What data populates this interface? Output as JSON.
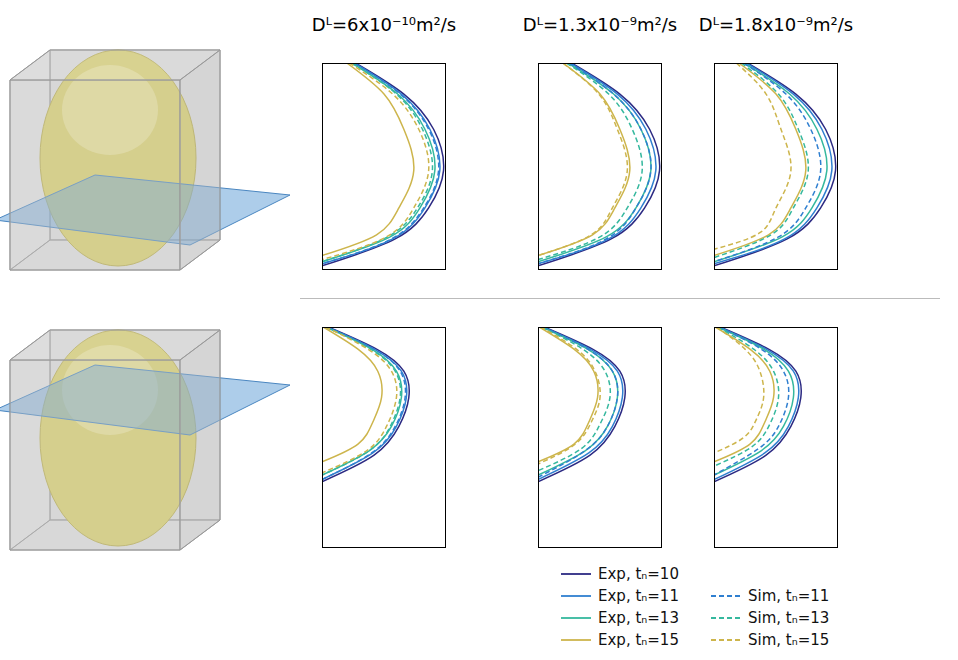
{
  "chart_data": [
    {
      "type": "line",
      "title": "Dᴸ=6x10⁻¹⁰m²/s",
      "xlim": [
        0,
        1
      ],
      "ylim": [
        0,
        1
      ],
      "tick_labels": false,
      "series": [
        {
          "name": "Exp, tₙ=10",
          "color": "#2c2a83",
          "line_style": "solid",
          "x": [
            0.27,
            0.66,
            0.9,
            0.98,
            0.86,
            0.59,
            0
          ],
          "values": [
            1,
            0.85,
            0.68,
            0.48,
            0.3,
            0.15,
            0.02
          ]
        },
        {
          "name": "Exp, tₙ=11",
          "color": "#2f7fd0",
          "line_style": "solid",
          "x": [
            0.26,
            0.64,
            0.87,
            0.95,
            0.83,
            0.57,
            0
          ],
          "values": [
            1,
            0.85,
            0.68,
            0.48,
            0.3,
            0.15,
            0.03
          ]
        },
        {
          "name": "Exp, tₙ=13",
          "color": "#35b89e",
          "line_style": "solid",
          "x": [
            0.24,
            0.61,
            0.83,
            0.91,
            0.79,
            0.55,
            0
          ],
          "values": [
            1,
            0.85,
            0.68,
            0.48,
            0.3,
            0.16,
            0.04
          ]
        },
        {
          "name": "Exp, tₙ=15",
          "color": "#cdb54c",
          "line_style": "solid",
          "x": [
            0.2,
            0.5,
            0.66,
            0.74,
            0.62,
            0.44,
            0
          ],
          "values": [
            1,
            0.85,
            0.68,
            0.48,
            0.3,
            0.17,
            0.07
          ]
        },
        {
          "name": "Sim, tₙ=11",
          "color": "#2f7fd0",
          "line_style": "dashed",
          "x": [
            0.26,
            0.63,
            0.86,
            0.94,
            0.82,
            0.56,
            0
          ],
          "values": [
            1,
            0.85,
            0.68,
            0.48,
            0.3,
            0.15,
            0.03
          ]
        },
        {
          "name": "Sim, tₙ=13",
          "color": "#35b89e",
          "line_style": "dashed",
          "x": [
            0.24,
            0.6,
            0.81,
            0.89,
            0.77,
            0.53,
            0
          ],
          "values": [
            1,
            0.85,
            0.68,
            0.48,
            0.3,
            0.16,
            0.04
          ]
        },
        {
          "name": "Sim, tₙ=15",
          "color": "#cdb54c",
          "line_style": "dashed",
          "x": [
            0.22,
            0.57,
            0.78,
            0.86,
            0.74,
            0.52,
            0
          ],
          "values": [
            1,
            0.85,
            0.68,
            0.48,
            0.3,
            0.16,
            0.05
          ]
        }
      ]
    },
    {
      "type": "line",
      "title": "Dᴸ=1.3x10⁻⁹m²/s",
      "xlim": [
        0,
        1
      ],
      "ylim": [
        0,
        1
      ],
      "tick_labels": false,
      "series": [
        {
          "name": "Exp, tₙ=10",
          "color": "#2c2a83",
          "line_style": "solid",
          "x": [
            0.27,
            0.66,
            0.9,
            0.98,
            0.86,
            0.59,
            0
          ],
          "values": [
            1,
            0.85,
            0.68,
            0.48,
            0.3,
            0.15,
            0.02
          ]
        },
        {
          "name": "Exp, tₙ=11",
          "color": "#2f7fd0",
          "line_style": "solid",
          "x": [
            0.26,
            0.64,
            0.87,
            0.95,
            0.83,
            0.57,
            0
          ],
          "values": [
            1,
            0.85,
            0.68,
            0.48,
            0.3,
            0.15,
            0.03
          ]
        },
        {
          "name": "Exp, tₙ=13",
          "color": "#35b89e",
          "line_style": "solid",
          "x": [
            0.24,
            0.61,
            0.83,
            0.91,
            0.79,
            0.55,
            0
          ],
          "values": [
            1,
            0.85,
            0.68,
            0.48,
            0.3,
            0.16,
            0.04
          ]
        },
        {
          "name": "Exp, tₙ=15",
          "color": "#cdb54c",
          "line_style": "solid",
          "x": [
            0.2,
            0.5,
            0.66,
            0.74,
            0.62,
            0.44,
            0
          ],
          "values": [
            1,
            0.85,
            0.68,
            0.48,
            0.3,
            0.17,
            0.07
          ]
        },
        {
          "name": "Sim, tₙ=11",
          "color": "#2f7fd0",
          "line_style": "dashed",
          "x": [
            0.25,
            0.61,
            0.83,
            0.91,
            0.79,
            0.55,
            0
          ],
          "values": [
            1,
            0.85,
            0.68,
            0.48,
            0.3,
            0.15,
            0.03
          ]
        },
        {
          "name": "Sim, tₙ=13",
          "color": "#35b89e",
          "line_style": "dashed",
          "x": [
            0.23,
            0.57,
            0.76,
            0.84,
            0.72,
            0.5,
            0
          ],
          "values": [
            1,
            0.85,
            0.68,
            0.48,
            0.3,
            0.16,
            0.05
          ]
        },
        {
          "name": "Sim, tₙ=15",
          "color": "#cdb54c",
          "line_style": "dashed",
          "x": [
            0.2,
            0.49,
            0.64,
            0.72,
            0.6,
            0.43,
            0
          ],
          "values": [
            1,
            0.85,
            0.68,
            0.48,
            0.3,
            0.17,
            0.07
          ]
        }
      ]
    },
    {
      "type": "line",
      "title": "Dᴸ=1.8x10⁻⁹m²/s",
      "xlim": [
        0,
        1
      ],
      "ylim": [
        0,
        1
      ],
      "tick_labels": false,
      "series": [
        {
          "name": "Exp, tₙ=10",
          "color": "#2c2a83",
          "line_style": "solid",
          "x": [
            0.27,
            0.66,
            0.9,
            0.98,
            0.86,
            0.59,
            0
          ],
          "values": [
            1,
            0.85,
            0.68,
            0.48,
            0.3,
            0.15,
            0.02
          ]
        },
        {
          "name": "Exp, tₙ=11",
          "color": "#2f7fd0",
          "line_style": "solid",
          "x": [
            0.26,
            0.64,
            0.87,
            0.95,
            0.83,
            0.57,
            0
          ],
          "values": [
            1,
            0.85,
            0.68,
            0.48,
            0.3,
            0.15,
            0.03
          ]
        },
        {
          "name": "Exp, tₙ=13",
          "color": "#35b89e",
          "line_style": "solid",
          "x": [
            0.24,
            0.61,
            0.83,
            0.91,
            0.79,
            0.55,
            0
          ],
          "values": [
            1,
            0.85,
            0.68,
            0.48,
            0.3,
            0.16,
            0.04
          ]
        },
        {
          "name": "Exp, tₙ=15",
          "color": "#cdb54c",
          "line_style": "solid",
          "x": [
            0.2,
            0.5,
            0.66,
            0.74,
            0.62,
            0.44,
            0
          ],
          "values": [
            1,
            0.85,
            0.68,
            0.48,
            0.3,
            0.17,
            0.07
          ]
        },
        {
          "name": "Sim, tₙ=11",
          "color": "#2f7fd0",
          "line_style": "dashed",
          "x": [
            0.24,
            0.58,
            0.78,
            0.86,
            0.74,
            0.52,
            0
          ],
          "values": [
            1,
            0.85,
            0.68,
            0.48,
            0.3,
            0.16,
            0.04
          ]
        },
        {
          "name": "Sim, tₙ=13",
          "color": "#35b89e",
          "line_style": "dashed",
          "x": [
            0.22,
            0.52,
            0.68,
            0.76,
            0.64,
            0.46,
            0
          ],
          "values": [
            1,
            0.85,
            0.68,
            0.48,
            0.3,
            0.17,
            0.06
          ]
        },
        {
          "name": "Sim, tₙ=15",
          "color": "#cdb54c",
          "line_style": "dashed",
          "x": [
            0.18,
            0.42,
            0.54,
            0.62,
            0.5,
            0.37,
            0
          ],
          "values": [
            1,
            0.85,
            0.68,
            0.48,
            0.3,
            0.18,
            0.1
          ]
        }
      ]
    },
    {
      "type": "line",
      "xlim": [
        0,
        1
      ],
      "ylim": [
        0,
        1
      ],
      "tick_labels": false,
      "series": [
        {
          "name": "Exp, tₙ=10",
          "color": "#2c2a83",
          "line_style": "solid",
          "x": [
            0.05,
            0.44,
            0.66,
            0.7,
            0.62,
            0.42,
            0
          ],
          "values": [
            1,
            0.9,
            0.8,
            0.68,
            0.55,
            0.42,
            0.3
          ]
        },
        {
          "name": "Exp, tₙ=11",
          "color": "#2f7fd0",
          "line_style": "solid",
          "x": [
            0.04,
            0.42,
            0.64,
            0.68,
            0.6,
            0.41,
            0
          ],
          "values": [
            1,
            0.9,
            0.8,
            0.68,
            0.55,
            0.43,
            0.31
          ]
        },
        {
          "name": "Exp, tₙ=13",
          "color": "#35b89e",
          "line_style": "solid",
          "x": [
            0.03,
            0.4,
            0.6,
            0.64,
            0.56,
            0.38,
            0
          ],
          "values": [
            1,
            0.9,
            0.8,
            0.68,
            0.55,
            0.44,
            0.33
          ]
        },
        {
          "name": "Exp, tₙ=15",
          "color": "#cdb54c",
          "line_style": "solid",
          "x": [
            0.01,
            0.29,
            0.45,
            0.48,
            0.41,
            0.29,
            0
          ],
          "values": [
            1,
            0.9,
            0.8,
            0.68,
            0.57,
            0.47,
            0.39
          ]
        },
        {
          "name": "Sim, tₙ=11",
          "color": "#2f7fd0",
          "line_style": "dashed",
          "x": [
            0.04,
            0.42,
            0.63,
            0.67,
            0.59,
            0.4,
            0
          ],
          "values": [
            1,
            0.9,
            0.8,
            0.68,
            0.55,
            0.43,
            0.31
          ]
        },
        {
          "name": "Sim, tₙ=13",
          "color": "#35b89e",
          "line_style": "dashed",
          "x": [
            0.03,
            0.39,
            0.59,
            0.63,
            0.55,
            0.38,
            0
          ],
          "values": [
            1,
            0.9,
            0.8,
            0.68,
            0.55,
            0.44,
            0.33
          ]
        },
        {
          "name": "Sim, tₙ=15",
          "color": "#cdb54c",
          "line_style": "dashed",
          "x": [
            0.03,
            0.37,
            0.56,
            0.6,
            0.52,
            0.36,
            0
          ],
          "values": [
            1,
            0.9,
            0.8,
            0.68,
            0.55,
            0.44,
            0.34
          ]
        }
      ]
    },
    {
      "type": "line",
      "xlim": [
        0,
        1
      ],
      "ylim": [
        0,
        1
      ],
      "tick_labels": false,
      "series": [
        {
          "name": "Exp, tₙ=10",
          "color": "#2c2a83",
          "line_style": "solid",
          "x": [
            0.05,
            0.44,
            0.66,
            0.7,
            0.62,
            0.42,
            0
          ],
          "values": [
            1,
            0.9,
            0.8,
            0.68,
            0.55,
            0.42,
            0.3
          ]
        },
        {
          "name": "Exp, tₙ=11",
          "color": "#2f7fd0",
          "line_style": "solid",
          "x": [
            0.04,
            0.42,
            0.64,
            0.68,
            0.6,
            0.41,
            0
          ],
          "values": [
            1,
            0.9,
            0.8,
            0.68,
            0.55,
            0.43,
            0.31
          ]
        },
        {
          "name": "Exp, tₙ=13",
          "color": "#35b89e",
          "line_style": "solid",
          "x": [
            0.03,
            0.4,
            0.6,
            0.64,
            0.56,
            0.38,
            0
          ],
          "values": [
            1,
            0.9,
            0.8,
            0.68,
            0.55,
            0.44,
            0.33
          ]
        },
        {
          "name": "Exp, tₙ=15",
          "color": "#cdb54c",
          "line_style": "solid",
          "x": [
            0.01,
            0.29,
            0.45,
            0.48,
            0.41,
            0.29,
            0
          ],
          "values": [
            1,
            0.9,
            0.8,
            0.68,
            0.57,
            0.47,
            0.39
          ]
        },
        {
          "name": "Sim, tₙ=11",
          "color": "#2f7fd0",
          "line_style": "dashed",
          "x": [
            0.04,
            0.4,
            0.6,
            0.64,
            0.56,
            0.38,
            0
          ],
          "values": [
            1,
            0.9,
            0.8,
            0.68,
            0.55,
            0.44,
            0.32
          ]
        },
        {
          "name": "Sim, tₙ=13",
          "color": "#35b89e",
          "line_style": "dashed",
          "x": [
            0.03,
            0.36,
            0.54,
            0.58,
            0.5,
            0.35,
            0
          ],
          "values": [
            1,
            0.9,
            0.8,
            0.68,
            0.56,
            0.45,
            0.35
          ]
        },
        {
          "name": "Sim, tₙ=15",
          "color": "#cdb54c",
          "line_style": "dashed",
          "x": [
            0.02,
            0.31,
            0.46,
            0.5,
            0.43,
            0.3,
            0
          ],
          "values": [
            1,
            0.9,
            0.8,
            0.68,
            0.57,
            0.47,
            0.38
          ]
        }
      ]
    },
    {
      "type": "line",
      "xlim": [
        0,
        1
      ],
      "ylim": [
        0,
        1
      ],
      "tick_labels": false,
      "legend": "bottom",
      "series": [
        {
          "name": "Exp, tₙ=10",
          "color": "#2c2a83",
          "line_style": "solid",
          "x": [
            0.05,
            0.44,
            0.66,
            0.7,
            0.62,
            0.42,
            0
          ],
          "values": [
            1,
            0.9,
            0.8,
            0.68,
            0.55,
            0.42,
            0.3
          ]
        },
        {
          "name": "Exp, tₙ=11",
          "color": "#2f7fd0",
          "line_style": "solid",
          "x": [
            0.04,
            0.42,
            0.64,
            0.68,
            0.6,
            0.41,
            0
          ],
          "values": [
            1,
            0.9,
            0.8,
            0.68,
            0.55,
            0.43,
            0.31
          ]
        },
        {
          "name": "Exp, tₙ=13",
          "color": "#35b89e",
          "line_style": "solid",
          "x": [
            0.03,
            0.4,
            0.6,
            0.64,
            0.56,
            0.38,
            0
          ],
          "values": [
            1,
            0.9,
            0.8,
            0.68,
            0.55,
            0.44,
            0.33
          ]
        },
        {
          "name": "Exp, tₙ=15",
          "color": "#cdb54c",
          "line_style": "solid",
          "x": [
            0.01,
            0.29,
            0.45,
            0.48,
            0.41,
            0.29,
            0
          ],
          "values": [
            1,
            0.9,
            0.8,
            0.68,
            0.57,
            0.47,
            0.39
          ]
        },
        {
          "name": "Sim, tₙ=11",
          "color": "#2f7fd0",
          "line_style": "dashed",
          "x": [
            0.04,
            0.38,
            0.56,
            0.6,
            0.52,
            0.36,
            0
          ],
          "values": [
            1,
            0.9,
            0.8,
            0.68,
            0.55,
            0.45,
            0.33
          ]
        },
        {
          "name": "Sim, tₙ=13",
          "color": "#35b89e",
          "line_style": "dashed",
          "x": [
            0.03,
            0.32,
            0.48,
            0.52,
            0.45,
            0.31,
            0
          ],
          "values": [
            1,
            0.9,
            0.8,
            0.68,
            0.56,
            0.46,
            0.37
          ]
        },
        {
          "name": "Sim, tₙ=15",
          "color": "#cdb54c",
          "line_style": "dashed",
          "x": [
            0.02,
            0.25,
            0.37,
            0.4,
            0.34,
            0.24,
            0
          ],
          "values": [
            1,
            0.9,
            0.8,
            0.68,
            0.58,
            0.5,
            0.43
          ]
        }
      ]
    }
  ]
}
